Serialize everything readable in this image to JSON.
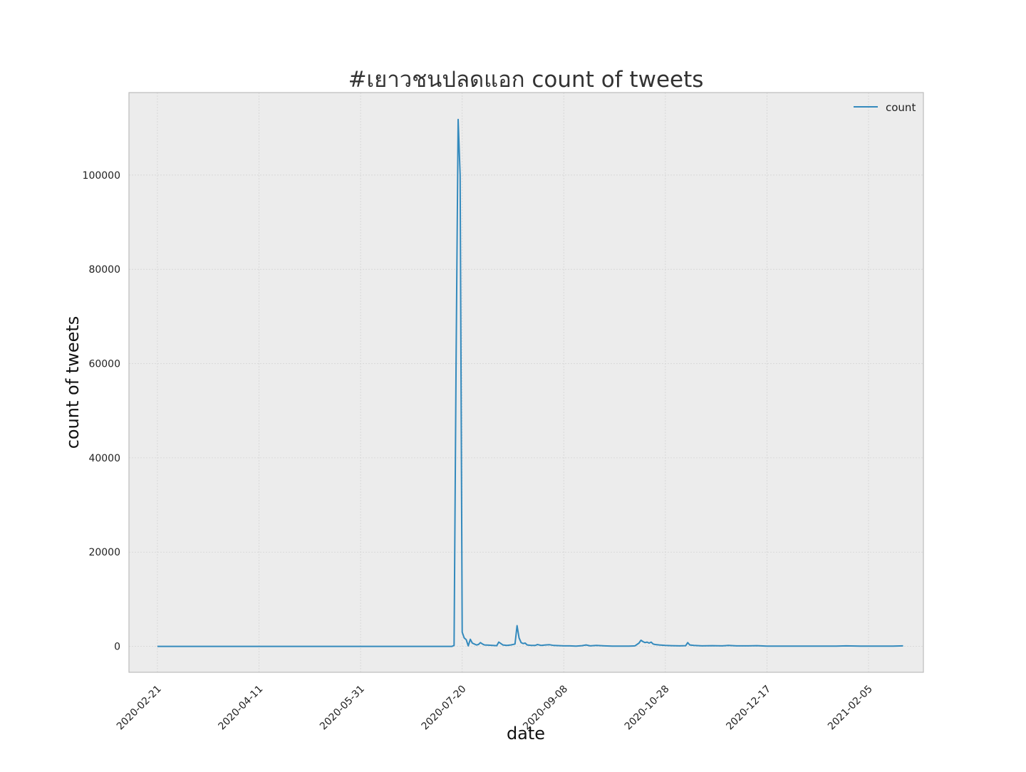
{
  "chart_data": {
    "type": "line",
    "title": "#เยาวชนปลดแอก count of tweets",
    "xlabel": "date",
    "ylabel": "count of tweets",
    "x_ticks": [
      "2020-02-21",
      "2020-04-11",
      "2020-05-31",
      "2020-07-20",
      "2020-09-08",
      "2020-10-28",
      "2020-12-17",
      "2021-02-05"
    ],
    "y_ticks": [
      0,
      20000,
      40000,
      60000,
      80000,
      100000
    ],
    "y_tick_labels": [
      "0",
      "20000",
      "40000",
      "60000",
      "80000",
      "100000"
    ],
    "xlim": [
      "2020-02-07",
      "2021-03-04"
    ],
    "ylim": [
      -5500,
      117500
    ],
    "grid": true,
    "legend_position": "top-right",
    "colors": {
      "line": "#348ABD",
      "plot_bg": "#ECECEC",
      "grid": "#D4D4D4",
      "frame": "#BCBCBC"
    },
    "series": [
      {
        "name": "count",
        "points": [
          [
            "2020-02-21",
            0
          ],
          [
            "2020-04-11",
            0
          ],
          [
            "2020-05-31",
            0
          ],
          [
            "2020-07-15",
            0
          ],
          [
            "2020-07-16",
            200
          ],
          [
            "2020-07-17",
            60000
          ],
          [
            "2020-07-18",
            111800
          ],
          [
            "2020-07-19",
            100000
          ],
          [
            "2020-07-20",
            3000
          ],
          [
            "2020-07-21",
            1800
          ],
          [
            "2020-07-22",
            1400
          ],
          [
            "2020-07-23",
            100
          ],
          [
            "2020-07-24",
            1500
          ],
          [
            "2020-07-25",
            700
          ],
          [
            "2020-07-26",
            500
          ],
          [
            "2020-07-27",
            300
          ],
          [
            "2020-07-28",
            400
          ],
          [
            "2020-07-29",
            800
          ],
          [
            "2020-07-30",
            500
          ],
          [
            "2020-07-31",
            300
          ],
          [
            "2020-08-02",
            250
          ],
          [
            "2020-08-04",
            200
          ],
          [
            "2020-08-06",
            150
          ],
          [
            "2020-08-07",
            900
          ],
          [
            "2020-08-08",
            600
          ],
          [
            "2020-08-09",
            300
          ],
          [
            "2020-08-11",
            200
          ],
          [
            "2020-08-13",
            300
          ],
          [
            "2020-08-15",
            500
          ],
          [
            "2020-08-16",
            4400
          ],
          [
            "2020-08-17",
            1800
          ],
          [
            "2020-08-18",
            800
          ],
          [
            "2020-08-19",
            600
          ],
          [
            "2020-08-20",
            700
          ],
          [
            "2020-08-21",
            300
          ],
          [
            "2020-08-23",
            200
          ],
          [
            "2020-08-25",
            200
          ],
          [
            "2020-08-26",
            400
          ],
          [
            "2020-08-28",
            200
          ],
          [
            "2020-08-30",
            300
          ],
          [
            "2020-09-01",
            350
          ],
          [
            "2020-09-03",
            200
          ],
          [
            "2020-09-06",
            150
          ],
          [
            "2020-09-08",
            100
          ],
          [
            "2020-09-11",
            100
          ],
          [
            "2020-09-14",
            50
          ],
          [
            "2020-09-17",
            150
          ],
          [
            "2020-09-19",
            300
          ],
          [
            "2020-09-21",
            100
          ],
          [
            "2020-09-24",
            200
          ],
          [
            "2020-09-28",
            100
          ],
          [
            "2020-10-02",
            50
          ],
          [
            "2020-10-06",
            50
          ],
          [
            "2020-10-10",
            50
          ],
          [
            "2020-10-13",
            100
          ],
          [
            "2020-10-15",
            700
          ],
          [
            "2020-10-16",
            1300
          ],
          [
            "2020-10-17",
            1000
          ],
          [
            "2020-10-18",
            800
          ],
          [
            "2020-10-19",
            900
          ],
          [
            "2020-10-20",
            700
          ],
          [
            "2020-10-21",
            900
          ],
          [
            "2020-10-22",
            500
          ],
          [
            "2020-10-23",
            400
          ],
          [
            "2020-10-25",
            300
          ],
          [
            "2020-10-28",
            200
          ],
          [
            "2020-10-31",
            150
          ],
          [
            "2020-11-04",
            100
          ],
          [
            "2020-11-07",
            150
          ],
          [
            "2020-11-08",
            800
          ],
          [
            "2020-11-09",
            300
          ],
          [
            "2020-11-11",
            200
          ],
          [
            "2020-11-15",
            100
          ],
          [
            "2020-11-20",
            150
          ],
          [
            "2020-11-25",
            100
          ],
          [
            "2020-11-28",
            200
          ],
          [
            "2020-12-02",
            100
          ],
          [
            "2020-12-08",
            100
          ],
          [
            "2020-12-12",
            150
          ],
          [
            "2020-12-17",
            50
          ],
          [
            "2020-12-25",
            50
          ],
          [
            "2021-01-01",
            50
          ],
          [
            "2021-01-10",
            50
          ],
          [
            "2021-01-20",
            50
          ],
          [
            "2021-01-25",
            100
          ],
          [
            "2021-02-01",
            50
          ],
          [
            "2021-02-10",
            50
          ],
          [
            "2021-02-17",
            50
          ],
          [
            "2021-02-22",
            100
          ]
        ]
      }
    ]
  }
}
